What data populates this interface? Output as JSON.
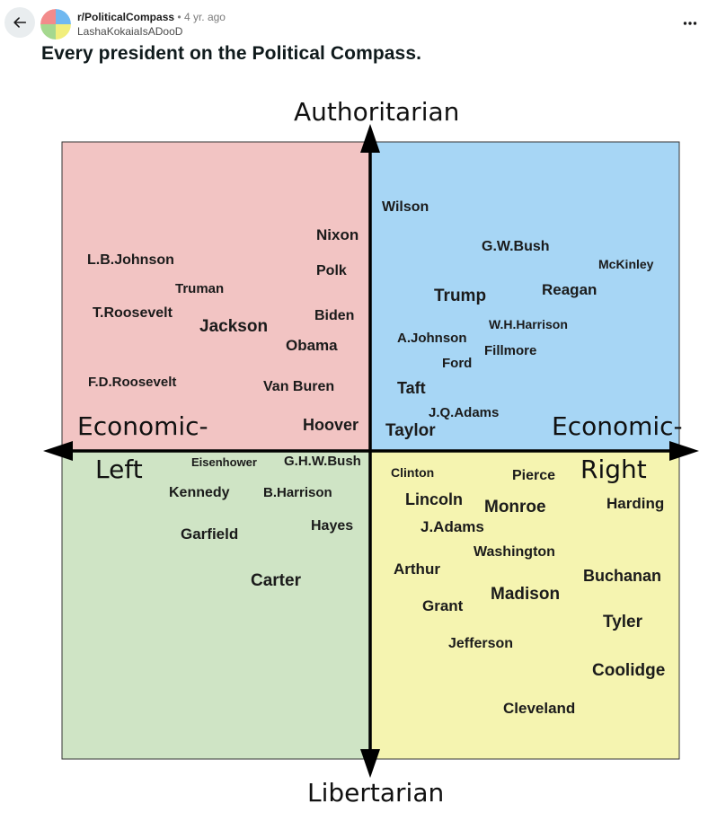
{
  "header": {
    "subreddit": "r/PoliticalCompass",
    "separator": "•",
    "age": "4 yr. ago",
    "username": "LashaKokaiaIsADooD",
    "more_glyph": "•••"
  },
  "post": {
    "title": "Every president on the Political Compass."
  },
  "icons": {
    "back": "arrow-left-icon",
    "more": "more-horizontal-icon",
    "avatar": "political-compass-logo-icon"
  },
  "compass": {
    "colors": {
      "auth_left": "#f2c4c3",
      "auth_right": "#a7d6f5",
      "lib_left": "#cfe4c5",
      "lib_right": "#f5f4b0",
      "axis": "#000000"
    },
    "labels": {
      "top": "Authoritarian",
      "bottom": "Libertarian",
      "left_line1": "Economic-",
      "left_line2": "Left",
      "right_line1": "Economic-",
      "right_line2": "Right"
    },
    "auth_left": [
      "L.B.Johnson",
      "Truman",
      "T.Roosevelt",
      "Jackson",
      "Nixon",
      "Polk",
      "Biden",
      "Obama",
      "F.D.Roosevelt",
      "Van Buren",
      "Hoover"
    ],
    "auth_right": [
      "Wilson",
      "G.W.Bush",
      "McKinley",
      "Trump",
      "Reagan",
      "W.H.Harrison",
      "A.Johnson",
      "Fillmore",
      "Ford",
      "Taft",
      "J.Q.Adams",
      "Taylor"
    ],
    "lib_left": [
      "Eisenhower",
      "G.H.W.Bush",
      "Kennedy",
      "B.Harrison",
      "Hayes",
      "Garfield",
      "Carter"
    ],
    "lib_right": [
      "Clinton",
      "Pierce",
      "Lincoln",
      "Monroe",
      "Harding",
      "J.Adams",
      "Washington",
      "Arthur",
      "Buchanan",
      "Madison",
      "Grant",
      "Tyler",
      "Jefferson",
      "Coolidge",
      "Cleveland"
    ]
  }
}
